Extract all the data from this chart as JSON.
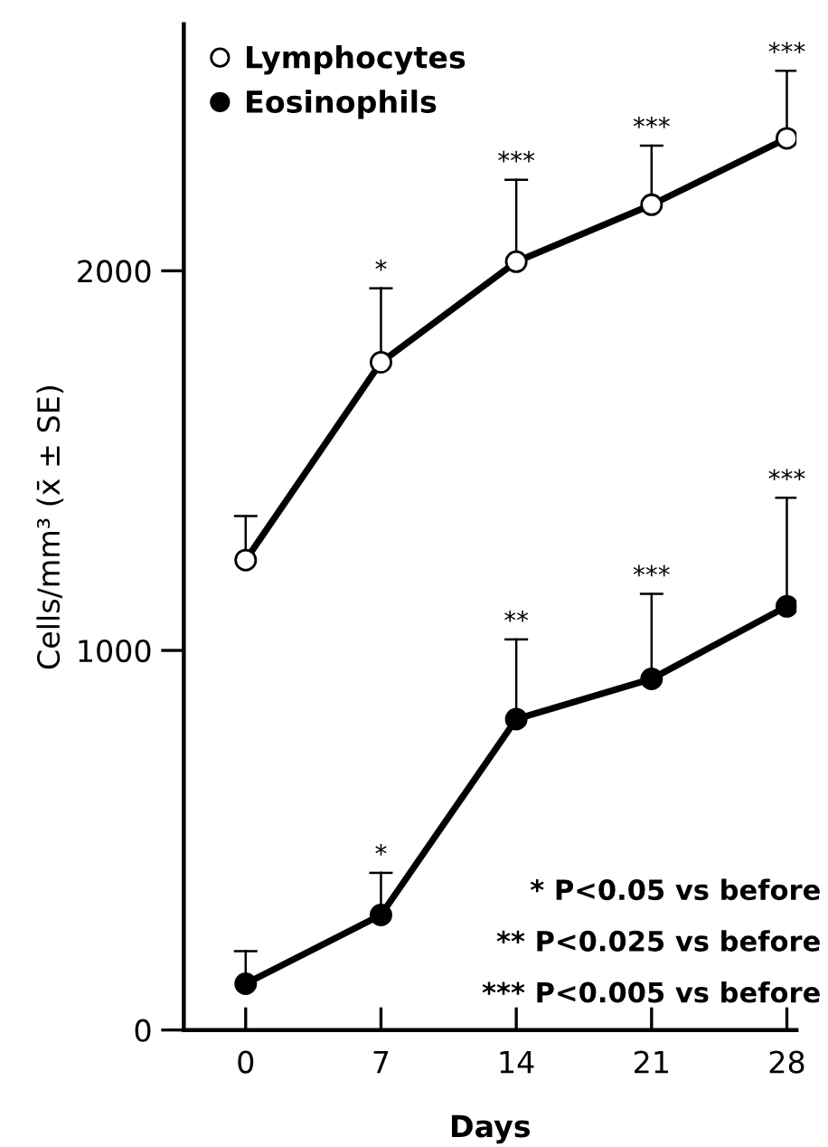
{
  "chart_data": {
    "type": "line",
    "xlabel": "Days",
    "ylabel": "Cells/mm³ (x̄ ± SE)",
    "x": [
      0,
      7,
      14,
      21,
      28
    ],
    "xlim": [
      -3.2,
      28.5
    ],
    "xticks": [
      0,
      7,
      14,
      21,
      28
    ],
    "ylim": [
      0,
      2650
    ],
    "yticks": [
      0,
      1000,
      2000
    ],
    "marker": "circle",
    "line_style": "solid",
    "legend": "top left",
    "grid": false,
    "series": [
      {
        "name": "Lymphocytes",
        "color": "#000000",
        "values": [
          1238,
          1759,
          2024,
          2174,
          2349
        ],
        "errors": [
          [
            1238,
            1354
          ],
          [
            1759,
            1954
          ],
          [
            2024,
            2240
          ],
          [
            2174,
            2330
          ],
          [
            2349,
            2527
          ]
        ]
      },
      {
        "name": "Eosinophils",
        "color": "#000000",
        "values": [
          122,
          303,
          819,
          925,
          1116
        ],
        "errors": [
          [
            122,
            208
          ],
          [
            303,
            414
          ],
          [
            819,
            1029
          ],
          [
            925,
            1149
          ],
          [
            1116,
            1402
          ]
        ]
      }
    ],
    "annotations": [
      {
        "text": "*",
        "x": 7,
        "y": 1954
      },
      {
        "text": "***",
        "x": 14,
        "y": 2240
      },
      {
        "text": "***",
        "x": 21,
        "y": 2330
      },
      {
        "text": "***",
        "x": 28,
        "y": 2527
      },
      {
        "text": "*",
        "x": 7,
        "y": 414
      },
      {
        "text": "**",
        "x": 14,
        "y": 1029
      },
      {
        "text": "***",
        "x": 21,
        "y": 1149
      },
      {
        "text": "***",
        "x": 28,
        "y": 1402
      },
      "* P<0.05 vs before",
      "** P<0.025 vs before",
      "*** P<0.005 vs before"
    ]
  }
}
